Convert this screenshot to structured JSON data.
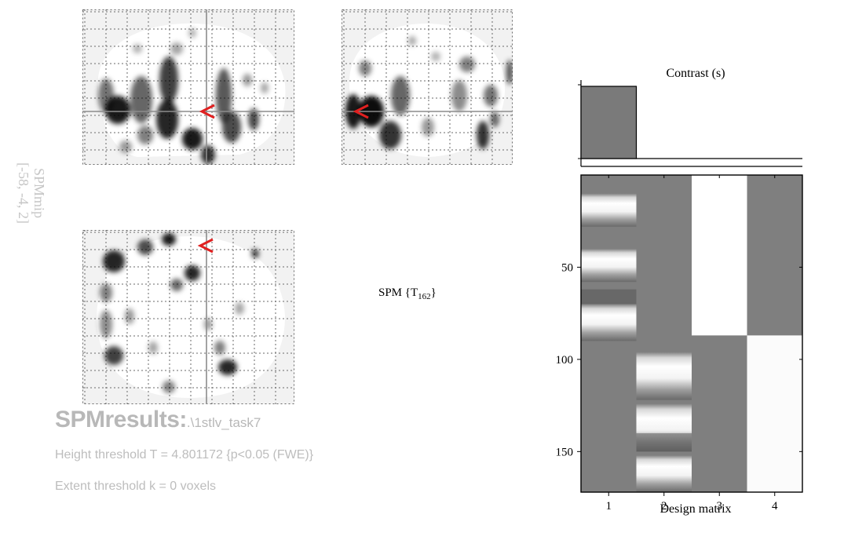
{
  "image_type": "SPM fMRI results figure: glass-brain maximum intensity projections with contrast and design matrix",
  "glass_brain": {
    "views": [
      "sagittal",
      "coronal",
      "transverse"
    ],
    "cursor_marker_color": "#e02020",
    "blob_color": "#000000",
    "coordinates": "[-58, -4, 2]",
    "rotated_label": "SPMmip"
  },
  "stat_label": {
    "prefix": "SPM {T",
    "df": "162",
    "suffix": "}"
  },
  "results": {
    "title": "SPMresults:",
    "path": ".\\1stlv_task7",
    "height_threshold": "Height threshold T = 4.801172  {p<0.05 (FWE)}",
    "extent_threshold": "Extent threshold k = 0 voxels"
  },
  "contrast": {
    "title": "Contrast (s)",
    "weights": [
      1,
      0,
      0,
      0
    ],
    "bar_color": "#7a7a7a"
  },
  "design_matrix": {
    "title": "Design matrix",
    "columns": [
      "1",
      "2",
      "3",
      "4"
    ],
    "row_ticks": [
      "50",
      "100",
      "150"
    ],
    "row_tick_values": [
      50,
      100,
      150
    ],
    "n_scans": 172,
    "base_gray": "#7f7f7f"
  }
}
